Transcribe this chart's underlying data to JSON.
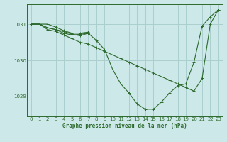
{
  "title": "Graphe pression niveau de la mer (hPa)",
  "background_color": "#cce8e8",
  "line_color": "#2d6a2d",
  "grid_color": "#aacece",
  "axis_color": "#2d6a2d",
  "text_color": "#2d6a2d",
  "xlim": [
    -0.5,
    23.5
  ],
  "ylim": [
    1028.45,
    1031.55
  ],
  "yticks": [
    1029,
    1030,
    1031
  ],
  "xticks": [
    0,
    1,
    2,
    3,
    4,
    5,
    6,
    7,
    8,
    9,
    10,
    11,
    12,
    13,
    14,
    15,
    16,
    17,
    18,
    19,
    20,
    21,
    22,
    23
  ],
  "series": [
    {
      "x": [
        0,
        1,
        2,
        3,
        4,
        5,
        6,
        7,
        8,
        9,
        10,
        11,
        12,
        13,
        14,
        15,
        16,
        17,
        18,
        19,
        20,
        21,
        22,
        23
      ],
      "y": [
        1031.0,
        1031.0,
        1030.85,
        1030.8,
        1030.7,
        1030.6,
        1030.5,
        1030.45,
        1030.35,
        1030.25,
        1030.15,
        1030.05,
        1029.95,
        1029.85,
        1029.75,
        1029.65,
        1029.55,
        1029.45,
        1029.35,
        1029.25,
        1029.15,
        1029.5,
        1031.0,
        1031.4
      ]
    },
    {
      "x": [
        0,
        1,
        2,
        3,
        4,
        5,
        6,
        7,
        8,
        9,
        10,
        11,
        12,
        13,
        14,
        15,
        16,
        17,
        18,
        19,
        20,
        21,
        22,
        23
      ],
      "y": [
        1031.0,
        1031.0,
        1030.9,
        1030.85,
        1030.75,
        1030.7,
        1030.72,
        1030.75,
        1030.55,
        1030.3,
        1029.75,
        1029.35,
        1029.1,
        1028.8,
        1028.65,
        1028.65,
        1028.85,
        1029.1,
        1029.3,
        1029.35,
        1029.95,
        1030.95,
        1031.2,
        1031.4
      ]
    },
    {
      "x": [
        0,
        1,
        2,
        3,
        4,
        5,
        6,
        7
      ],
      "y": [
        1031.0,
        1031.0,
        1030.9,
        1030.85,
        1030.8,
        1030.72,
        1030.68,
        1030.75
      ]
    },
    {
      "x": [
        0,
        1,
        2,
        3,
        4,
        5,
        6,
        7
      ],
      "y": [
        1031.0,
        1031.0,
        1031.0,
        1030.92,
        1030.82,
        1030.75,
        1030.75,
        1030.78
      ]
    }
  ]
}
